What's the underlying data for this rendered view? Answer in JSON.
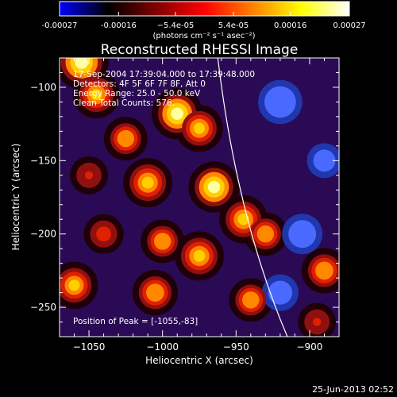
{
  "chart_data": {
    "type": "heatmap",
    "title": "Reconstructed RHESSI Image",
    "xlabel": "Heliocentric X (arcsec)",
    "ylabel": "Heliocentric Y (arcsec)",
    "xlim": [
      -1070,
      -880
    ],
    "ylim": [
      -270,
      -80
    ],
    "x_ticks": [
      -1050,
      -1000,
      -950,
      -900
    ],
    "x_tick_labels": [
      "−1050",
      "−1000",
      "−950",
      "−900"
    ],
    "y_ticks": [
      -100,
      -150,
      -200,
      -250
    ],
    "y_tick_labels": [
      "−100",
      "−150",
      "−200",
      "−250"
    ],
    "colorbar": {
      "range": [
        -0.00027,
        0.00027
      ],
      "tick_values": [
        -0.00027,
        -0.00016,
        -5.4e-05,
        5.4e-05,
        0.00016,
        0.00027
      ],
      "tick_labels": [
        "-0.00027",
        "-0.00016",
        "−5.4e-05",
        "5.4e-05",
        "0.00016",
        "0.00027"
      ],
      "unit_label": "(photons cm⁻² s⁻¹ asec⁻²)",
      "colors": [
        "#0000ff",
        "#000000",
        "#800000",
        "#ff0000",
        "#ff8000",
        "#ffff00",
        "#ffffff"
      ]
    },
    "limb_color": "#ffffff",
    "sources": [
      {
        "x": -1055,
        "y": -83,
        "intensity": 0.00027
      },
      {
        "x": -1045,
        "y": -105,
        "intensity": 0.0002
      },
      {
        "x": -990,
        "y": -118,
        "intensity": 0.00024
      },
      {
        "x": -975,
        "y": -128,
        "intensity": 0.0002
      },
      {
        "x": -1025,
        "y": -135,
        "intensity": 0.00016
      },
      {
        "x": -1010,
        "y": -165,
        "intensity": 0.00022
      },
      {
        "x": -965,
        "y": -168,
        "intensity": 0.00024
      },
      {
        "x": -945,
        "y": -190,
        "intensity": 0.00021
      },
      {
        "x": -930,
        "y": -200,
        "intensity": 0.00016
      },
      {
        "x": -1000,
        "y": -205,
        "intensity": 0.00016
      },
      {
        "x": -975,
        "y": -215,
        "intensity": 0.00022
      },
      {
        "x": -1040,
        "y": -200,
        "intensity": 0.00012
      },
      {
        "x": -1005,
        "y": -240,
        "intensity": 0.00018
      },
      {
        "x": -1060,
        "y": -235,
        "intensity": 0.0002
      },
      {
        "x": -940,
        "y": -245,
        "intensity": 0.00016
      },
      {
        "x": -890,
        "y": -225,
        "intensity": 0.00018
      },
      {
        "x": -895,
        "y": -260,
        "intensity": 0.0001
      },
      {
        "x": -1050,
        "y": -160,
        "intensity": 0.0001
      }
    ],
    "negative_regions": [
      {
        "x": -920,
        "y": -110,
        "intensity": -0.0002
      },
      {
        "x": -905,
        "y": -200,
        "intensity": -0.00016
      },
      {
        "x": -920,
        "y": -240,
        "intensity": -0.00012
      },
      {
        "x": -890,
        "y": -150,
        "intensity": -0.0001
      }
    ]
  },
  "annotations": {
    "lines": [
      "17-Sep-2004 17:39:04.000 to 17:39:48.000",
      "Detectors: 4F 5F 6F 7F 8F, Att 0",
      "Energy Range: 25.0 - 50.0 keV",
      "Clean    Total Counts: 576."
    ],
    "peak": "Position of Peak = [-1055,-83]"
  },
  "footer": "25-Jun-2013 02:52"
}
